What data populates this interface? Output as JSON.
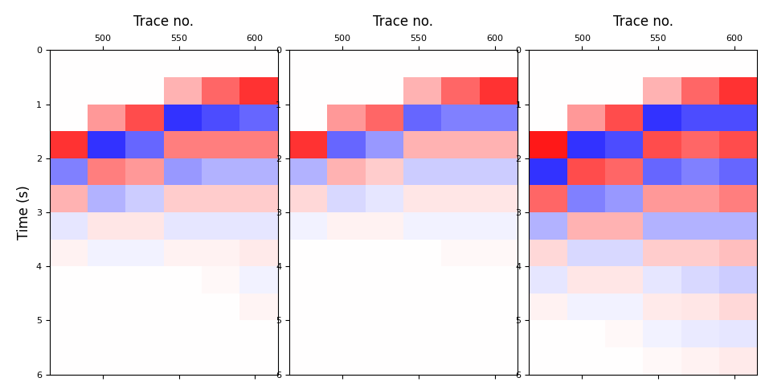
{
  "chart_data": [
    {
      "type": "heatmap",
      "x_label": "Trace no.",
      "y_label": "Time (s)",
      "xlim": [
        465,
        615
      ],
      "xticks": [
        500,
        550,
        600
      ],
      "ylim": [
        6,
        0
      ],
      "yticks": [
        0,
        1,
        2,
        3,
        4,
        5,
        6
      ],
      "trace_edges": [
        465,
        490,
        515,
        540,
        565,
        590,
        615
      ],
      "time_edges": [
        0,
        0.5,
        1,
        1.5,
        2,
        2.5,
        3,
        3.5,
        4,
        4.5,
        5,
        5.5,
        6
      ],
      "color_range": [
        -1,
        1
      ],
      "cells": [
        [
          0,
          0,
          0,
          0,
          0,
          0
        ],
        [
          0,
          0,
          0,
          0.3,
          0.6,
          0.8
        ],
        [
          0,
          0.4,
          0.7,
          -0.8,
          -0.7,
          -0.6
        ],
        [
          0.8,
          -0.8,
          -0.6,
          0.5,
          0.5,
          0.5
        ],
        [
          -0.5,
          0.5,
          0.4,
          -0.4,
          -0.3,
          -0.3
        ],
        [
          0.3,
          -0.3,
          -0.2,
          0.2,
          0.2,
          0.2
        ],
        [
          -0.1,
          0.1,
          0.1,
          -0.1,
          -0.1,
          -0.1
        ],
        [
          0.05,
          -0.05,
          -0.05,
          0.05,
          0.05,
          0.08
        ],
        [
          0,
          0,
          0,
          0,
          0.03,
          -0.05
        ],
        [
          0,
          0,
          0,
          0,
          0,
          0.04
        ],
        [
          0,
          0,
          0,
          0,
          0,
          0
        ],
        [
          0,
          0,
          0,
          0,
          0,
          0
        ]
      ]
    },
    {
      "type": "heatmap",
      "x_label": "Trace no.",
      "xlim": [
        465,
        615
      ],
      "xticks": [
        500,
        550,
        600
      ],
      "ylim": [
        6,
        0
      ],
      "yticks": [
        0,
        1,
        2,
        3,
        4,
        5,
        6
      ],
      "trace_edges": [
        465,
        490,
        515,
        540,
        565,
        590,
        615
      ],
      "time_edges": [
        0,
        0.5,
        1,
        1.5,
        2,
        2.5,
        3,
        3.5,
        4,
        4.5,
        5,
        5.5,
        6
      ],
      "color_range": [
        -1,
        1
      ],
      "cells": [
        [
          0,
          0,
          0,
          0,
          0,
          0
        ],
        [
          0,
          0,
          0,
          0.3,
          0.6,
          0.8
        ],
        [
          0,
          0.4,
          0.6,
          -0.6,
          -0.5,
          -0.5
        ],
        [
          0.8,
          -0.6,
          -0.4,
          0.3,
          0.3,
          0.3
        ],
        [
          -0.3,
          0.3,
          0.2,
          -0.2,
          -0.2,
          -0.2
        ],
        [
          0.15,
          -0.15,
          -0.1,
          0.1,
          0.1,
          0.1
        ],
        [
          -0.05,
          0.05,
          0.05,
          -0.05,
          -0.05,
          -0.05
        ],
        [
          0,
          0,
          0,
          0,
          0.03,
          0.03
        ],
        [
          0,
          0,
          0,
          0,
          0,
          0
        ],
        [
          0,
          0,
          0,
          0,
          0,
          0
        ],
        [
          0,
          0,
          0,
          0,
          0,
          0
        ],
        [
          0,
          0,
          0,
          0,
          0,
          0
        ]
      ]
    },
    {
      "type": "heatmap",
      "x_label": "Trace no.",
      "xlim": [
        465,
        615
      ],
      "xticks": [
        500,
        550,
        600
      ],
      "ylim": [
        6,
        0
      ],
      "yticks": [
        0,
        1,
        2,
        3,
        4,
        5,
        6
      ],
      "trace_edges": [
        465,
        490,
        515,
        540,
        565,
        590,
        615
      ],
      "time_edges": [
        0,
        0.5,
        1,
        1.5,
        2,
        2.5,
        3,
        3.5,
        4,
        4.5,
        5,
        5.5,
        6
      ],
      "color_range": [
        -1,
        1
      ],
      "cells": [
        [
          0,
          0,
          0,
          0,
          0,
          0
        ],
        [
          0,
          0,
          0,
          0.3,
          0.6,
          0.8
        ],
        [
          0,
          0.4,
          0.7,
          -0.8,
          -0.7,
          -0.7
        ],
        [
          0.9,
          -0.8,
          -0.7,
          0.7,
          0.6,
          0.7
        ],
        [
          -0.8,
          0.7,
          0.6,
          -0.6,
          -0.5,
          -0.6
        ],
        [
          0.6,
          -0.5,
          -0.4,
          0.4,
          0.4,
          0.5
        ],
        [
          -0.3,
          0.3,
          0.3,
          -0.3,
          -0.3,
          -0.3
        ],
        [
          0.15,
          -0.15,
          -0.15,
          0.2,
          0.2,
          0.25
        ],
        [
          -0.1,
          0.1,
          0.1,
          -0.1,
          -0.15,
          -0.2
        ],
        [
          0.05,
          -0.05,
          -0.05,
          0.08,
          0.1,
          0.15
        ],
        [
          0,
          0,
          0.03,
          -0.05,
          -0.08,
          -0.1
        ],
        [
          0,
          0,
          0,
          0.03,
          0.05,
          0.08
        ]
      ]
    }
  ]
}
